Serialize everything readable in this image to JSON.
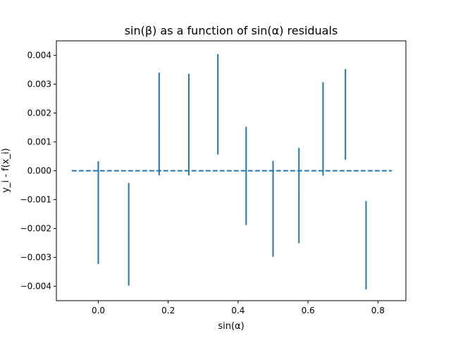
{
  "chart_data": {
    "type": "scatter",
    "title": "sin(β) as a function of sin(α) residuals",
    "xlabel": "sin(α)",
    "ylabel": "y_i - f(x_i)",
    "xlim": [
      -0.12,
      0.88
    ],
    "ylim": [
      -0.0045,
      0.0045
    ],
    "x_ticks": [
      0.0,
      0.2,
      0.4,
      0.6,
      0.8
    ],
    "x_tick_labels": [
      "0.0",
      "0.2",
      "0.4",
      "0.6",
      "0.8"
    ],
    "y_ticks": [
      -0.004,
      -0.003,
      -0.002,
      -0.001,
      0.0,
      0.001,
      0.002,
      0.003,
      0.004
    ],
    "y_tick_labels": [
      "−0.004",
      "−0.003",
      "−0.002",
      "−0.001",
      "0.000",
      "0.001",
      "0.002",
      "0.003",
      "0.004"
    ],
    "grid": false,
    "series": [
      {
        "color": "#1f77b4",
        "style": "errorbar",
        "x": [
          0.0,
          0.087,
          0.174,
          0.259,
          0.342,
          0.423,
          0.5,
          0.574,
          0.643,
          0.707,
          0.766
        ],
        "y": [
          -0.00145,
          -0.0022,
          0.00162,
          0.0016,
          0.0023,
          -0.00018,
          -0.00132,
          -0.00086,
          0.00145,
          0.00195,
          -0.00258
        ],
        "yerr": [
          0.00178,
          0.00178,
          0.00178,
          0.00176,
          0.00174,
          0.0017,
          0.00166,
          0.00165,
          0.00162,
          0.00157,
          0.00153
        ]
      }
    ],
    "reference_line": {
      "y": 0.0,
      "x_range": [
        -0.076,
        0.84
      ],
      "style": "dashed",
      "color": "#1f77b4"
    }
  }
}
